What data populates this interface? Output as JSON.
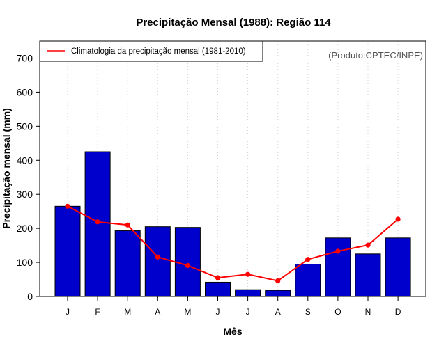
{
  "chart_data": {
    "type": "bar",
    "title": "Precipitação Mensal (1988): Região 114",
    "xlabel": "Mês",
    "ylabel": "Precipitação mensal (mm)",
    "ylim": [
      0,
      750
    ],
    "yticks": [
      0,
      100,
      200,
      300,
      400,
      500,
      600,
      700
    ],
    "categories": [
      "J",
      "F",
      "M",
      "A",
      "M",
      "J",
      "J",
      "A",
      "S",
      "O",
      "N",
      "D"
    ],
    "series": [
      {
        "name": "Precipitação mensal 1988",
        "kind": "bar",
        "color": "#0000cc",
        "values": [
          265,
          425,
          193,
          205,
          203,
          42,
          20,
          18,
          95,
          172,
          125,
          172
        ]
      },
      {
        "name": "Climatologia da precipitação mensal (1981-2010)",
        "kind": "line",
        "color": "#ff0000",
        "values": [
          265,
          219,
          210,
          116,
          91,
          55,
          65,
          46,
          109,
          133,
          151,
          227
        ]
      }
    ],
    "grid": "vertical dotted",
    "legend_position": "top-left",
    "annotation": "(Produto:CPTEC/INPE)"
  }
}
